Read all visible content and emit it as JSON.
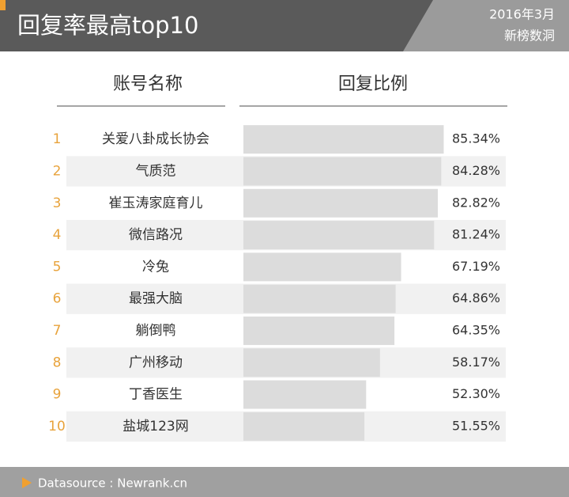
{
  "chart_data": {
    "type": "bar",
    "orientation": "horizontal",
    "title": "回复率最高top10",
    "annotations": [
      "2016年3月",
      "新榜数洞"
    ],
    "column_headers": [
      "账号名称",
      "回复比例"
    ],
    "ranks": [
      1,
      2,
      3,
      4,
      5,
      6,
      7,
      8,
      9,
      10
    ],
    "categories": [
      "关爱八卦成长协会",
      "气质范",
      "崔玉涛家庭育儿",
      "微信路况",
      "冷兔",
      "最强大脑",
      "躺倒鸭",
      "广州移动",
      "丁香医生",
      "盐城123网"
    ],
    "values": [
      85.34,
      84.28,
      82.82,
      81.24,
      67.19,
      64.86,
      64.35,
      58.17,
      52.3,
      51.55
    ],
    "value_labels": [
      "85.34%",
      "84.28%",
      "82.82%",
      "81.24%",
      "67.19%",
      "64.86%",
      "64.35%",
      "58.17%",
      "52.30%",
      "51.55%"
    ],
    "xlim": [
      0,
      100
    ],
    "color": "#dcdcdc",
    "source": "Datasource : Newrank.cn"
  }
}
